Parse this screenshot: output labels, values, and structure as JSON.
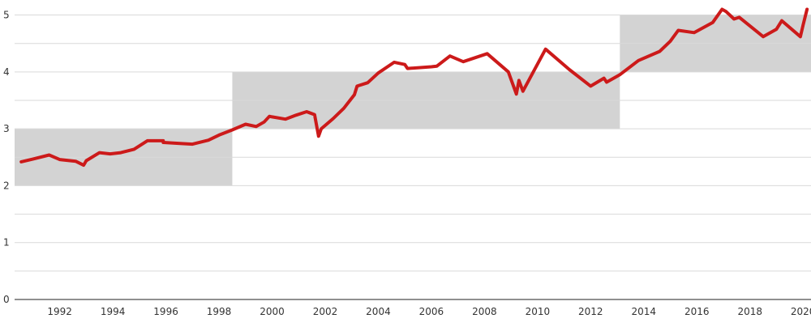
{
  "chart_data": {
    "type": "line",
    "title": "",
    "xlabel": "",
    "ylabel": "",
    "xlim": [
      1990.3,
      2020.3
    ],
    "ylim": [
      0,
      5.15
    ],
    "grid": true,
    "y_ticks": [
      0,
      1,
      2,
      3,
      4,
      5
    ],
    "y_minor_gridlines": [
      0.5,
      1.5,
      2.5,
      3.5,
      4.5
    ],
    "x_ticks": [
      1992,
      1994,
      1996,
      1998,
      2000,
      2002,
      2004,
      2006,
      2008,
      2010,
      2012,
      2014,
      2016,
      2018,
      2020
    ],
    "band_color": "#d3d3d3",
    "shaded_bands": [
      {
        "x_start": 1990.3,
        "x_end": 1998.5,
        "y_low": 2,
        "y_high": 3
      },
      {
        "x_start": 1998.5,
        "x_end": 2013.1,
        "y_low": 3,
        "y_high": 4
      },
      {
        "x_start": 2013.1,
        "x_end": 2020.3,
        "y_low": 4,
        "y_high": 5
      }
    ],
    "series": [
      {
        "color": "#cc1a1a",
        "x": [
          1990.55,
          1991.0,
          1991.6,
          1992.0,
          1992.6,
          1992.9,
          1993.0,
          1993.5,
          1993.9,
          1994.3,
          1994.8,
          1995.3,
          1995.6,
          1995.9,
          1995.9,
          1996.6,
          1997.0,
          1997.6,
          1998.0,
          1998.5,
          1999.0,
          1999.4,
          1999.7,
          1999.9,
          2000.0,
          2000.5,
          2000.9,
          2001.3,
          2001.6,
          2001.75,
          2001.85,
          2002.3,
          2002.7,
          2003.1,
          2003.2,
          2003.6,
          2004.0,
          2004.6,
          2005.0,
          2005.1,
          2006.0,
          2006.2,
          2006.7,
          2007.2,
          2008.1,
          2008.9,
          2009.2,
          2009.3,
          2009.45,
          2010.3,
          2011.2,
          2012.0,
          2012.5,
          2012.6,
          2013.1,
          2013.8,
          2014.6,
          2015.0,
          2015.3,
          2015.9,
          2016.6,
          2016.95,
          2017.1,
          2017.4,
          2017.6,
          2018.5,
          2019.0,
          2019.2,
          2019.9,
          2020.0,
          2020.15
        ],
        "y": [
          2.42,
          2.47,
          2.54,
          2.46,
          2.43,
          2.36,
          2.44,
          2.58,
          2.56,
          2.58,
          2.64,
          2.79,
          2.79,
          2.79,
          2.76,
          2.74,
          2.73,
          2.8,
          2.89,
          2.98,
          3.08,
          3.04,
          3.12,
          3.22,
          3.21,
          3.17,
          3.24,
          3.3,
          3.25,
          2.87,
          3.0,
          3.18,
          3.36,
          3.6,
          3.75,
          3.81,
          3.98,
          4.17,
          4.13,
          4.06,
          4.09,
          4.1,
          4.28,
          4.18,
          4.32,
          4.0,
          3.61,
          3.85,
          3.66,
          4.4,
          4.04,
          3.75,
          3.89,
          3.82,
          3.95,
          4.2,
          4.36,
          4.54,
          4.73,
          4.69,
          4.87,
          5.1,
          5.06,
          4.93,
          4.96,
          4.62,
          4.75,
          4.9,
          4.62,
          4.82,
          5.1
        ]
      }
    ]
  }
}
